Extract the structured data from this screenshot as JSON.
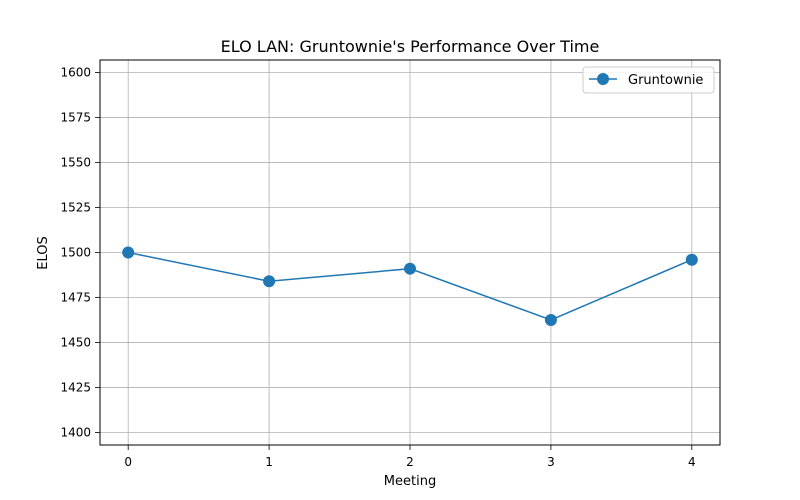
{
  "chart_data": {
    "type": "line",
    "title": "ELO LAN: Gruntownie's Performance Over Time",
    "xlabel": "Meeting",
    "ylabel": "ELOS",
    "x": [
      0,
      1,
      2,
      3,
      4
    ],
    "series": [
      {
        "name": "Gruntownie",
        "values": [
          1500,
          1484,
          1491,
          1462.5,
          1496
        ]
      }
    ],
    "xlim": [
      -0.2,
      4.2
    ],
    "ylim": [
      1393,
      1607
    ],
    "xticks": [
      0,
      1,
      2,
      3,
      4
    ],
    "yticks": [
      1400,
      1425,
      1450,
      1475,
      1500,
      1525,
      1550,
      1575,
      1600
    ],
    "grid": true,
    "legend": "top-right",
    "line_color": "#1f77b4"
  }
}
